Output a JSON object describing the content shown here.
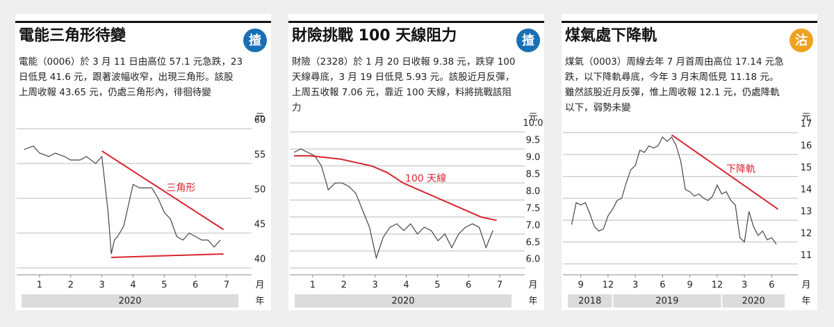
{
  "chart_data": [
    {
      "type": "line",
      "title": "電能三角形待變",
      "badge": "揸",
      "badge_color": "#1a6fb5",
      "description": [
        "電能（0006）於 3 月 11 日由高位 57.1 元急跌，23",
        "日低見 41.6 元，跟著波幅收窄，出現三角形。該股",
        "上周收報 43.65 元，仍處三角形內，徘徊待變"
      ],
      "y_unit": "元",
      "x_unit": "月",
      "year_unit": "年",
      "xlim": [
        0.4,
        7.4
      ],
      "xticks": [
        1,
        2,
        3,
        4,
        5,
        6,
        7
      ],
      "ylim": [
        39,
        61
      ],
      "yticks": [
        40,
        45,
        50,
        55,
        60
      ],
      "grid": true,
      "years": [
        {
          "label": "2020",
          "range": [
            0.4,
            7.4
          ]
        }
      ],
      "series": [
        {
          "color": "#444444",
          "x": [
            0.5,
            0.8,
            1.0,
            1.3,
            1.5,
            1.8,
            2.0,
            2.3,
            2.5,
            2.8,
            3.0,
            3.1,
            3.2,
            3.3,
            3.4,
            3.5,
            3.7,
            3.9,
            4.0,
            4.2,
            4.4,
            4.6,
            4.8,
            5.0,
            5.2,
            5.4,
            5.6,
            5.8,
            6.0,
            6.2,
            6.4,
            6.6,
            6.8
          ],
          "values": [
            57,
            57.5,
            56.5,
            56,
            56.5,
            56,
            55.5,
            55.5,
            56,
            55,
            56,
            52,
            48,
            42,
            44,
            44.5,
            46,
            50,
            52,
            51.5,
            51.5,
            51.5,
            50,
            48,
            47,
            44.5,
            44,
            45,
            44.5,
            44,
            44,
            43,
            44
          ]
        },
        {
          "name": "三角形",
          "color": "#d7262f",
          "x": [
            3.0,
            6.9
          ],
          "values": [
            56.8,
            45.5
          ]
        },
        {
          "color": "#d7262f",
          "x": [
            3.3,
            6.9
          ],
          "values": [
            41.5,
            42
          ]
        }
      ]
    },
    {
      "type": "line",
      "title": "財險挑戰 100 天線阻力",
      "badge": "揸",
      "badge_color": "#1a6fb5",
      "description": [
        "財險（2328）於 1 月 20 日收報 9.38 元，跌穿 100",
        "天線尋底，3 月 19 日低見 5.93 元。該股近月反彈，",
        "上周五收報 7.06 元，靠近 100 天線，料將挑戰該阻",
        "力"
      ],
      "y_unit": "元",
      "x_unit": "月",
      "year_unit": "年",
      "xlim": [
        0.4,
        7.4
      ],
      "xticks": [
        1,
        2,
        3,
        4,
        5,
        6,
        7
      ],
      "ylim": [
        5.8,
        10.3
      ],
      "yticks": [
        {
          "value": 6,
          "label": "6.0"
        },
        6.5,
        {
          "value": 7,
          "label": "7.0"
        },
        7.5,
        {
          "value": 8,
          "label": "8.0"
        },
        8.5,
        {
          "value": 9,
          "label": "9.0"
        },
        9.5,
        {
          "value": 10,
          "label": "10.0"
        }
      ],
      "grid": true,
      "years": [
        {
          "label": "2020",
          "range": [
            0.4,
            7.4
          ]
        }
      ],
      "series": [
        {
          "color": "#444444",
          "x": [
            0.4,
            0.62,
            0.84,
            1.06,
            1.28,
            1.5,
            1.72,
            1.94,
            2.16,
            2.38,
            2.6,
            2.82,
            3.04,
            3.26,
            3.48,
            3.7,
            3.92,
            4.14,
            4.36,
            4.58,
            4.8,
            5.02,
            5.24,
            5.46,
            5.68,
            5.9,
            6.12,
            6.34,
            6.56,
            6.78
          ],
          "values": [
            9.4,
            9.5,
            9.4,
            9.3,
            9.0,
            8.3,
            8.5,
            8.5,
            8.4,
            8.2,
            7.7,
            7.2,
            6.3,
            6.9,
            7.2,
            7.3,
            7.1,
            7.3,
            7.0,
            7.2,
            7.1,
            6.8,
            7.0,
            6.6,
            7.0,
            7.2,
            7.3,
            7.2,
            6.6,
            7.1
          ]
        },
        {
          "name": "100 天線",
          "color": "#d7262f",
          "x": [
            0.4,
            0.9,
            1.4,
            1.9,
            2.4,
            2.9,
            3.4,
            3.9,
            4.4,
            4.9,
            5.4,
            5.9,
            6.4,
            6.9
          ],
          "values": [
            9.3,
            9.3,
            9.25,
            9.2,
            9.1,
            9.0,
            8.8,
            8.5,
            8.3,
            8.1,
            7.9,
            7.7,
            7.5,
            7.4
          ]
        }
      ]
    },
    {
      "type": "line",
      "title": "煤氣處下降軌",
      "badge": "沽",
      "badge_color": "#f0a21e",
      "description": [
        "煤氣（0003）周線去年 7 月首周由高位 17.14 元急",
        "跌，以下降軌尋底，今年 3 月末周低見 11.18 元。",
        "雖然該股近月反彈，惟上周收報 12.1 元，仍處降軌",
        "以下，弱勢未變"
      ],
      "y_unit": "元",
      "x_unit": "月",
      "year_unit": "年",
      "xlim": [
        7.5,
        31.5
      ],
      "xticks": [
        {
          "value": 9,
          "label": "9"
        },
        {
          "value": 12,
          "label": "12"
        },
        {
          "value": 15,
          "label": "3"
        },
        {
          "value": 18,
          "label": "6"
        },
        {
          "value": 21,
          "label": "9"
        },
        {
          "value": 24,
          "label": "12"
        },
        {
          "value": 27,
          "label": "3"
        },
        {
          "value": 30,
          "label": "6"
        }
      ],
      "ylim": [
        10.5,
        17.5
      ],
      "yticks": [
        11,
        12,
        13,
        14,
        15,
        16,
        17
      ],
      "grid": true,
      "years": [
        {
          "label": "2018",
          "range": [
            7.5,
            12.5
          ]
        },
        {
          "label": "2019",
          "range": [
            12.5,
            24.5
          ]
        },
        {
          "label": "2020",
          "range": [
            24.5,
            31.5
          ]
        }
      ],
      "series": [
        {
          "color": "#444444",
          "x": [
            8,
            8.5,
            9,
            9.5,
            10,
            10.5,
            11,
            11.5,
            12,
            12.5,
            13,
            13.5,
            14,
            14.5,
            15,
            15.5,
            16,
            16.5,
            17,
            17.5,
            18,
            18.5,
            19,
            19.5,
            20,
            20.5,
            21,
            21.5,
            22,
            22.5,
            23,
            23.5,
            24,
            24.5,
            25,
            25.5,
            26,
            26.5,
            27,
            27.5,
            28,
            28.5,
            29,
            29.5,
            30,
            30.5
          ],
          "values": [
            12.8,
            13.8,
            13.7,
            13.8,
            13.3,
            12.7,
            12.5,
            12.6,
            13.2,
            13.5,
            13.9,
            14,
            14.7,
            15.3,
            15.5,
            16.2,
            16.1,
            16.4,
            16.3,
            16.4,
            16.8,
            16.6,
            16.8,
            16.4,
            15.7,
            14.4,
            14.3,
            14.1,
            14.2,
            14,
            13.9,
            14.1,
            14.6,
            14.2,
            14.3,
            13.9,
            13.7,
            12.2,
            12,
            13.4,
            12.7,
            12.3,
            12.5,
            12.1,
            12.2,
            11.9
          ]
        },
        {
          "name": "下降軌",
          "color": "#d7262f",
          "x": [
            19,
            30.7
          ],
          "values": [
            16.9,
            13.5
          ]
        }
      ]
    }
  ]
}
